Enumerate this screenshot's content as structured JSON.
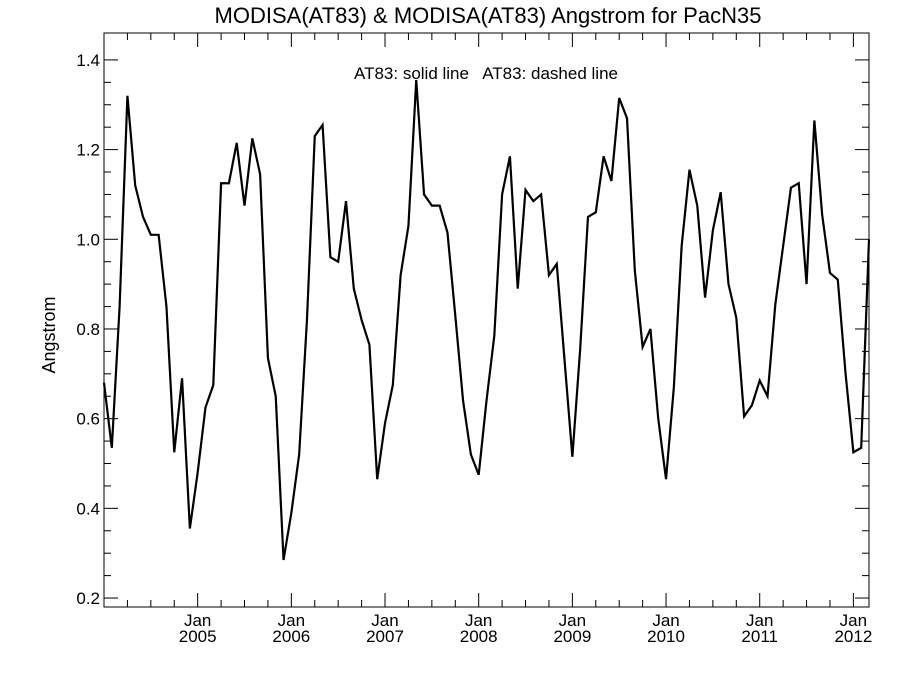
{
  "chart_data": {
    "type": "line",
    "title": "MODISA(AT83) & MODISA(AT83)  Angstrom for PacN35",
    "annotation": "AT83: solid line   AT83: dashed line",
    "xlabel": "",
    "ylabel": "Angstrom",
    "ylim": [
      0.18,
      1.46
    ],
    "xlim": [
      "2004-01",
      "2012-03"
    ],
    "yticks": [
      "0.2",
      "0.4",
      "0.6",
      "0.8",
      "1.0",
      "1.2",
      "1.4"
    ],
    "xticks": [
      {
        "month": "Jan",
        "year": "2005",
        "date": "2005-01"
      },
      {
        "month": "Jan",
        "year": "2006",
        "date": "2006-01"
      },
      {
        "month": "Jan",
        "year": "2007",
        "date": "2007-01"
      },
      {
        "month": "Jan",
        "year": "2008",
        "date": "2008-01"
      },
      {
        "month": "Jan",
        "year": "2009",
        "date": "2009-01"
      },
      {
        "month": "Jan",
        "year": "2010",
        "date": "2010-01"
      },
      {
        "month": "Jan",
        "year": "2011",
        "date": "2011-01"
      },
      {
        "month": "Jan",
        "year": "2012",
        "date": "2012-01"
      }
    ],
    "grid": false,
    "series": [
      {
        "style": "solid",
        "color": "#000000",
        "x": [
          "2004-01",
          "2004-02",
          "2004-03",
          "2004-04",
          "2004-05",
          "2004-06",
          "2004-07",
          "2004-08",
          "2004-09",
          "2004-10",
          "2004-11",
          "2004-12",
          "2005-01",
          "2005-02",
          "2005-03",
          "2005-04",
          "2005-05",
          "2005-06",
          "2005-07",
          "2005-08",
          "2005-09",
          "2005-10",
          "2005-11",
          "2005-12",
          "2006-01",
          "2006-02",
          "2006-03",
          "2006-04",
          "2006-05",
          "2006-06",
          "2006-07",
          "2006-08",
          "2006-09",
          "2006-10",
          "2006-11",
          "2006-12",
          "2007-01",
          "2007-02",
          "2007-03",
          "2007-04",
          "2007-05",
          "2007-06",
          "2007-07",
          "2007-08",
          "2007-09",
          "2007-10",
          "2007-11",
          "2007-12",
          "2008-01",
          "2008-02",
          "2008-03",
          "2008-04",
          "2008-05",
          "2008-06",
          "2008-07",
          "2008-08",
          "2008-09",
          "2008-10",
          "2008-11",
          "2008-12",
          "2009-01",
          "2009-02",
          "2009-03",
          "2009-04",
          "2009-05",
          "2009-06",
          "2009-07",
          "2009-08",
          "2009-09",
          "2009-10",
          "2009-11",
          "2009-12",
          "2010-01",
          "2010-02",
          "2010-03",
          "2010-04",
          "2010-05",
          "2010-06",
          "2010-07",
          "2010-08",
          "2010-09",
          "2010-10",
          "2010-11",
          "2010-12",
          "2011-01",
          "2011-02",
          "2011-03",
          "2011-04",
          "2011-05",
          "2011-06",
          "2011-07",
          "2011-08",
          "2011-09",
          "2011-10",
          "2011-11",
          "2011-12",
          "2012-01",
          "2012-02",
          "2012-03"
        ],
        "y": [
          0.68,
          0.535,
          0.85,
          1.32,
          1.12,
          1.05,
          1.01,
          1.01,
          0.85,
          0.525,
          0.69,
          0.355,
          0.48,
          0.625,
          0.675,
          1.125,
          1.125,
          1.215,
          1.075,
          1.225,
          1.145,
          0.735,
          0.65,
          0.285,
          0.39,
          0.52,
          0.82,
          1.23,
          1.255,
          0.96,
          0.95,
          1.085,
          0.89,
          0.82,
          0.765,
          0.465,
          0.59,
          0.675,
          0.92,
          1.03,
          1.355,
          1.1,
          1.075,
          1.075,
          1.015,
          0.83,
          0.64,
          0.52,
          0.475,
          0.64,
          0.785,
          1.1,
          1.185,
          0.89,
          1.11,
          1.085,
          1.1,
          0.92,
          0.945,
          0.73,
          0.515,
          0.755,
          1.05,
          1.06,
          1.185,
          1.13,
          1.315,
          1.27,
          0.93,
          0.76,
          0.8,
          0.6,
          0.465,
          0.67,
          0.985,
          1.155,
          1.075,
          0.87,
          1.02,
          1.105,
          0.9,
          0.825,
          0.605,
          0.63,
          0.685,
          0.65,
          0.855,
          0.985,
          1.115,
          1.125,
          0.9,
          1.265,
          1.055,
          0.925,
          0.91,
          0.7,
          0.525,
          0.535,
          1.0
        ]
      }
    ]
  }
}
